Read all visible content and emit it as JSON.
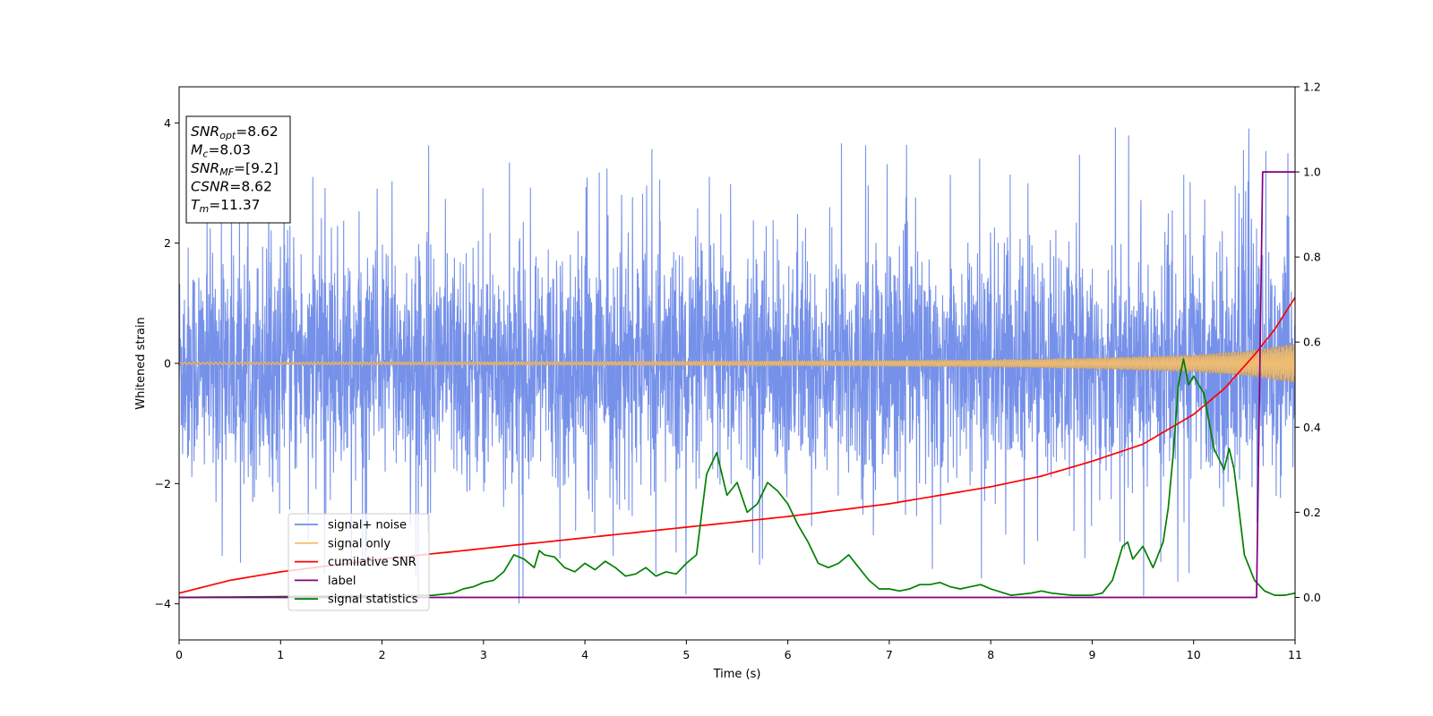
{
  "chart_data": {
    "type": "line",
    "xlabel": "Time (s)",
    "ylabel": "Whitened strain",
    "xlim": [
      0,
      11
    ],
    "ylim": [
      -4.6,
      4.6
    ],
    "y2lim": [
      -0.1,
      1.2
    ],
    "x_ticks": [
      "0",
      "1",
      "2",
      "3",
      "4",
      "5",
      "6",
      "7",
      "8",
      "9",
      "10",
      "11"
    ],
    "y_ticks": [
      "4",
      "2",
      "0",
      "−2",
      "−4"
    ],
    "y_tick_values": [
      4,
      2,
      0,
      -2,
      -4
    ],
    "y2_ticks": [
      "1.2",
      "1.0",
      "0.8",
      "0.6",
      "0.4",
      "0.2",
      "0.0"
    ],
    "y2_tick_values": [
      1.2,
      1.0,
      0.8,
      0.6,
      0.4,
      0.2,
      0.0
    ],
    "legend_position": "lower-left",
    "colors": {
      "signal_noise": "#6f8be8",
      "signal_only": "#f5c070",
      "cumulative_snr": "#ff0000",
      "label": "#800080",
      "signal_statistics": "#008000",
      "overlap": "#b89a78"
    },
    "series": [
      {
        "name": "signal+ noise",
        "axis": "left",
        "description_kind": "noise",
        "noise_sigma": 1.0,
        "extremes_note": "spikes up to about 4.1 and down to about -4.1",
        "peak_max": 4.15,
        "peak_min": -4.1
      },
      {
        "name": "signal only",
        "axis": "left",
        "envelope_x": [
          0,
          2,
          4,
          6,
          8,
          9,
          10,
          10.5,
          11
        ],
        "envelope_amp": [
          0.02,
          0.025,
          0.03,
          0.04,
          0.06,
          0.09,
          0.14,
          0.2,
          0.32
        ]
      },
      {
        "name": "cumilative SNR",
        "axis": "right",
        "x": [
          0,
          0.5,
          1,
          2,
          3,
          4,
          5,
          6,
          7,
          8,
          8.5,
          9,
          9.5,
          10,
          10.3,
          10.6,
          10.8,
          11
        ],
        "y": [
          0.01,
          0.04,
          0.06,
          0.09,
          0.115,
          0.14,
          0.165,
          0.19,
          0.22,
          0.26,
          0.285,
          0.32,
          0.36,
          0.43,
          0.49,
          0.57,
          0.63,
          0.705
        ]
      },
      {
        "name": "label",
        "axis": "right",
        "x": [
          0,
          10.62,
          10.68,
          11
        ],
        "y": [
          0.0,
          0.0,
          1.0,
          1.0
        ]
      },
      {
        "name": "signal statistics",
        "axis": "right",
        "x": [
          0,
          2.5,
          2.7,
          2.8,
          2.9,
          3.0,
          3.1,
          3.2,
          3.3,
          3.4,
          3.5,
          3.55,
          3.6,
          3.7,
          3.8,
          3.9,
          4.0,
          4.1,
          4.2,
          4.3,
          4.4,
          4.5,
          4.6,
          4.7,
          4.8,
          4.9,
          5.0,
          5.1,
          5.2,
          5.3,
          5.4,
          5.5,
          5.6,
          5.7,
          5.8,
          5.9,
          6.0,
          6.1,
          6.2,
          6.3,
          6.4,
          6.5,
          6.6,
          6.7,
          6.8,
          6.9,
          7.0,
          7.1,
          7.2,
          7.3,
          7.4,
          7.5,
          7.6,
          7.7,
          7.8,
          7.9,
          8.0,
          8.2,
          8.4,
          8.5,
          8.6,
          8.8,
          9.0,
          9.1,
          9.2,
          9.3,
          9.35,
          9.4,
          9.5,
          9.6,
          9.7,
          9.75,
          9.8,
          9.85,
          9.9,
          9.95,
          10.0,
          10.1,
          10.2,
          10.3,
          10.35,
          10.4,
          10.5,
          10.6,
          10.7,
          10.8,
          10.9,
          11.0
        ],
        "y": [
          0.0,
          0.005,
          0.01,
          0.02,
          0.025,
          0.035,
          0.04,
          0.06,
          0.1,
          0.09,
          0.07,
          0.11,
          0.1,
          0.095,
          0.07,
          0.06,
          0.08,
          0.065,
          0.085,
          0.07,
          0.05,
          0.055,
          0.07,
          0.05,
          0.06,
          0.055,
          0.08,
          0.1,
          0.29,
          0.34,
          0.24,
          0.27,
          0.2,
          0.22,
          0.27,
          0.25,
          0.22,
          0.17,
          0.13,
          0.08,
          0.07,
          0.08,
          0.1,
          0.07,
          0.04,
          0.02,
          0.02,
          0.015,
          0.02,
          0.03,
          0.03,
          0.035,
          0.025,
          0.02,
          0.025,
          0.03,
          0.02,
          0.005,
          0.01,
          0.015,
          0.01,
          0.005,
          0.005,
          0.01,
          0.04,
          0.12,
          0.13,
          0.09,
          0.12,
          0.07,
          0.13,
          0.21,
          0.34,
          0.5,
          0.56,
          0.5,
          0.52,
          0.48,
          0.35,
          0.3,
          0.35,
          0.3,
          0.1,
          0.04,
          0.015,
          0.005,
          0.005,
          0.01
        ]
      }
    ],
    "info_box": [
      {
        "base": "SNR",
        "sub": "opt",
        "value": "=8.62"
      },
      {
        "base": "M",
        "sub": "c",
        "value": "=8.03"
      },
      {
        "base": "SNR",
        "sub": "MF",
        "value": "=[9.2]"
      },
      {
        "base": "CSNR",
        "sub": "",
        "value": "=8.62"
      },
      {
        "base": "T",
        "sub": "m",
        "value": "=11.37"
      }
    ]
  }
}
